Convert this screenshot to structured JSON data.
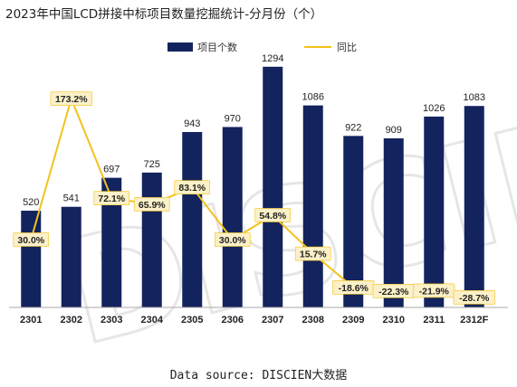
{
  "title": "2023年中国LCD拼接中标项目数量挖掘统计-分月份（个）",
  "source": "Data source: DISCIEN大数据",
  "watermark": "DISCIEN",
  "colors": {
    "bar": "#13235e",
    "line": "#f4c21a",
    "label_bg": "#fbf0c7",
    "axis": "#aaaaaa"
  },
  "chart_data": {
    "type": "bar",
    "categories": [
      "2301",
      "2302",
      "2303",
      "2304",
      "2305",
      "2306",
      "2307",
      "2308",
      "2309",
      "2310",
      "2311",
      "2312F"
    ],
    "series": [
      {
        "name": "项目个数",
        "type": "bar",
        "axis": "left",
        "values": [
          520,
          541,
          697,
          725,
          943,
          970,
          1294,
          1086,
          922,
          909,
          1026,
          1083
        ],
        "labels": [
          "520",
          "541",
          "697",
          "725",
          "943",
          "970",
          "1294",
          "1086",
          "922",
          "909",
          "1026",
          "1083"
        ]
      },
      {
        "name": "同比",
        "type": "line",
        "axis": "right",
        "values": [
          30.0,
          173.2,
          72.1,
          65.9,
          83.1,
          30.0,
          54.8,
          15.7,
          -18.6,
          -22.3,
          -21.9,
          -28.7
        ],
        "labels": [
          "30.0%",
          "173.2%",
          "72.1%",
          "65.9%",
          "83.1%",
          "30.0%",
          "54.8%",
          "15.7%",
          "-18.6%",
          "-22.3%",
          "-21.9%",
          "-28.7%"
        ]
      }
    ],
    "ylim": [
      0,
      1400
    ],
    "y2lim": [
      -50,
      200
    ],
    "legend": "top-right",
    "grid": false
  }
}
